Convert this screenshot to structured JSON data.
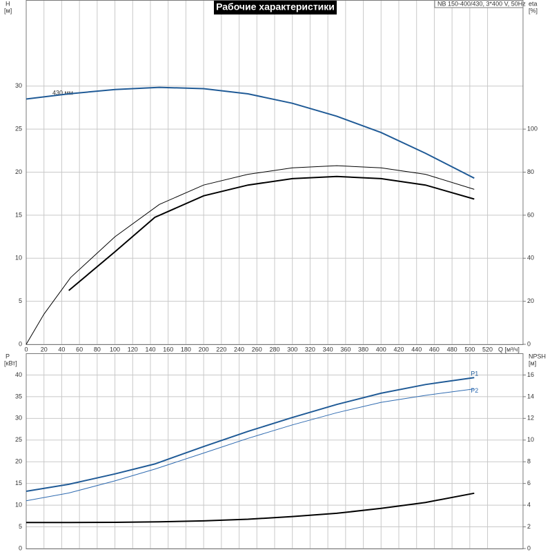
{
  "chart_data": [
    {
      "type": "line",
      "title": "Рабочие характеристики",
      "subtitle": "NB 150-400/430, 3*400 V, 50Hz",
      "x_label": "Q [м³/ч]",
      "y_label": "H",
      "y_unit": "[м]",
      "y2_label": "eta",
      "y2_unit": "[%]",
      "annotation": "430 мм",
      "xlim": [
        0,
        560
      ],
      "xticks": [
        0,
        20,
        40,
        60,
        80,
        100,
        120,
        140,
        160,
        180,
        200,
        220,
        240,
        260,
        280,
        300,
        320,
        340,
        360,
        380,
        400,
        420,
        440,
        460,
        480,
        500,
        520
      ],
      "ylim": [
        0,
        40
      ],
      "yticks": [
        0,
        5,
        10,
        15,
        20,
        25,
        30
      ],
      "y2lim": [
        0,
        160
      ],
      "y2ticks": [
        0,
        20,
        40,
        60,
        80,
        100
      ],
      "grid": true,
      "series": [
        {
          "color": "#1f5a96",
          "x": [
            0,
            48,
            100,
            150,
            200,
            250,
            300,
            350,
            400,
            450,
            505
          ],
          "values": [
            28.5,
            29.1,
            29.6,
            29.85,
            29.7,
            29.1,
            28.0,
            26.5,
            24.6,
            22.2,
            19.3
          ]
        },
        {
          "color": "#000000",
          "axis": "y2",
          "x": [
            0,
            20,
            50,
            100,
            150,
            200,
            250,
            300,
            350,
            400,
            450,
            505
          ],
          "values": [
            0,
            14,
            31,
            50,
            65,
            74,
            79,
            82,
            83,
            82,
            79,
            72
          ]
        },
        {
          "color": "#000000",
          "axis": "y2",
          "x": [
            48,
            100,
            145,
            200,
            250,
            300,
            350,
            400,
            450,
            505
          ],
          "values": [
            25,
            43,
            59,
            69,
            74,
            77,
            78,
            77,
            74,
            67.5
          ]
        }
      ]
    },
    {
      "type": "line",
      "y_label": "P",
      "y_unit": "[кВт]",
      "y2_label": "NPSH",
      "y2_unit": "[м]",
      "xlim": [
        0,
        560
      ],
      "ylim": [
        0,
        45
      ],
      "yticks": [
        0,
        5,
        10,
        15,
        20,
        25,
        30,
        35,
        40
      ],
      "y2lim": [
        0,
        18
      ],
      "y2ticks": [
        0,
        2,
        4,
        6,
        8,
        10,
        12,
        14,
        16
      ],
      "grid": true,
      "series": [
        {
          "name": "P1",
          "color": "#1f5a96",
          "x": [
            0,
            48,
            100,
            145,
            200,
            250,
            300,
            350,
            400,
            450,
            505
          ],
          "values": [
            13.2,
            14.8,
            17.2,
            19.5,
            23.5,
            27.0,
            30.2,
            33.2,
            35.8,
            37.8,
            39.4
          ]
        },
        {
          "name": "P2",
          "color": "#2e6ab0",
          "x": [
            0,
            48,
            100,
            145,
            200,
            250,
            300,
            350,
            400,
            450,
            505
          ],
          "values": [
            11.0,
            12.8,
            15.6,
            18.3,
            22.0,
            25.4,
            28.5,
            31.3,
            33.7,
            35.3,
            36.8
          ]
        },
        {
          "color": "#000000",
          "axis": "y2",
          "x": [
            0,
            50,
            100,
            150,
            200,
            250,
            300,
            350,
            400,
            450,
            505
          ],
          "values": [
            2.4,
            2.4,
            2.42,
            2.46,
            2.55,
            2.7,
            2.95,
            3.25,
            3.7,
            4.25,
            5.1
          ]
        }
      ]
    }
  ]
}
